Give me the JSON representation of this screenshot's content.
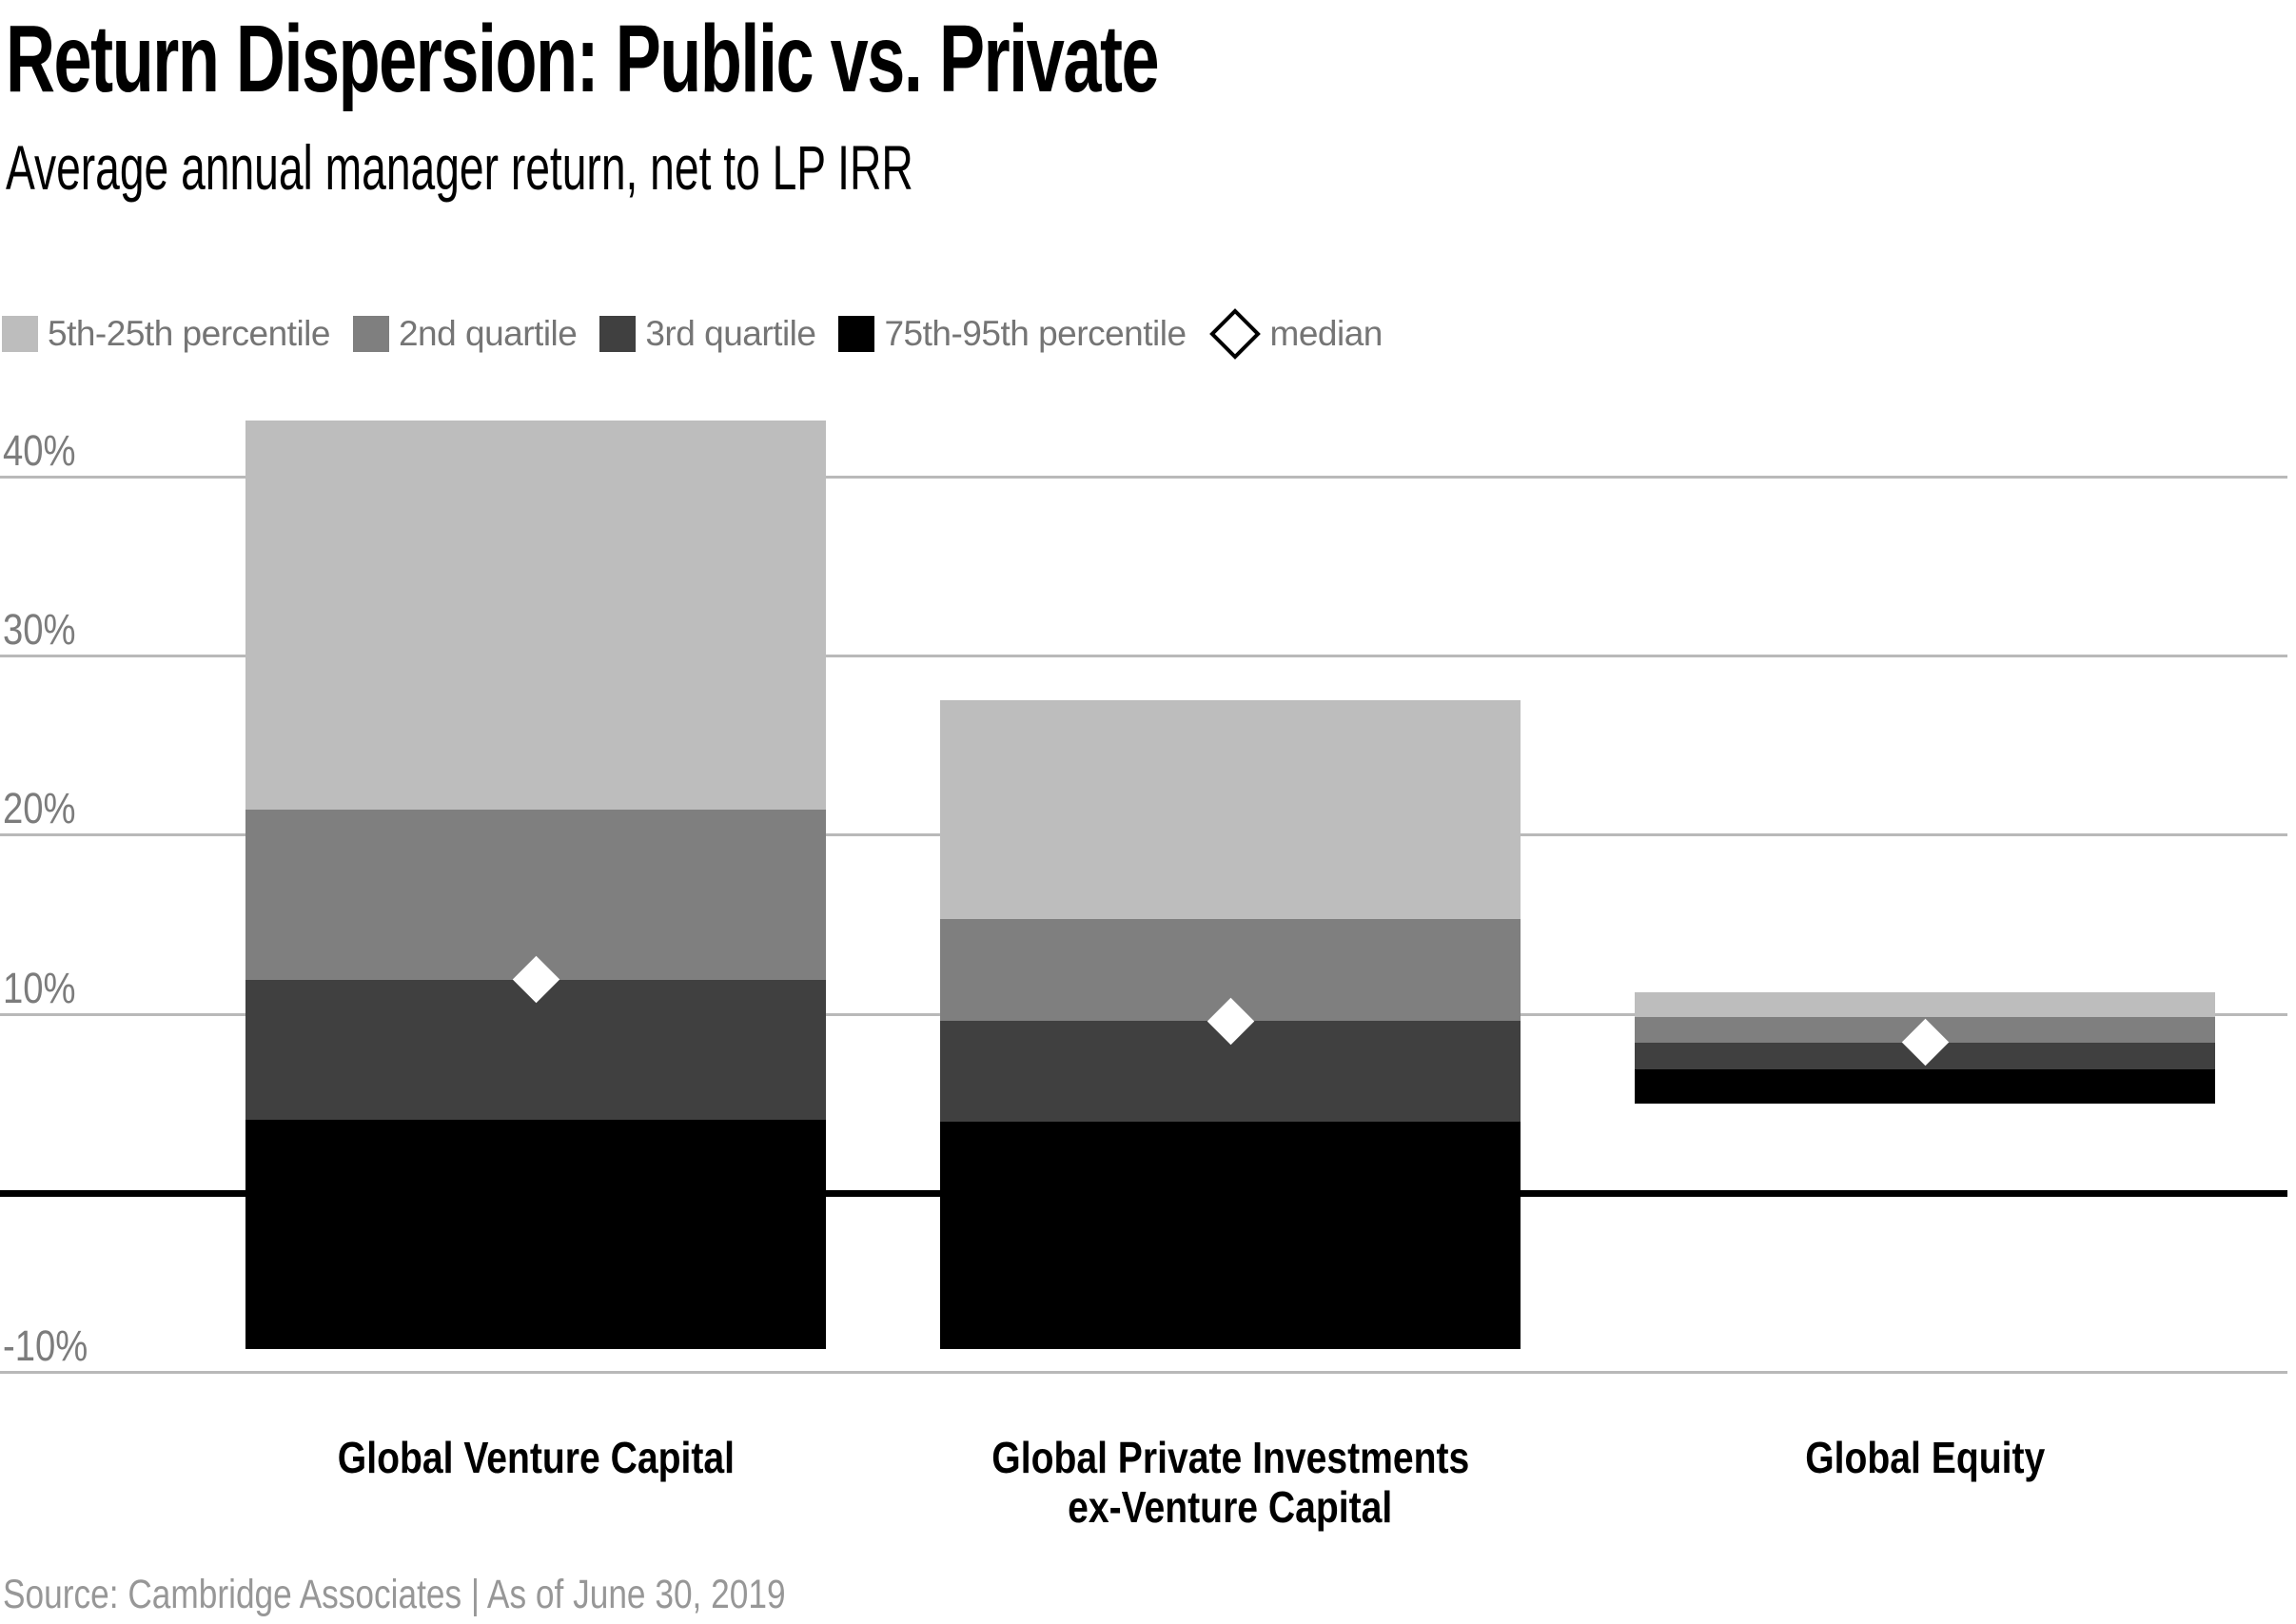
{
  "title": "Return Dispersion: Public vs. Private",
  "subtitle": "Average annual manager return, net to LP IRR",
  "source": "Source: Cambridge Associates | As of June 30, 2019",
  "legend": [
    {
      "label": "5th-25th percentile",
      "swatch": "square",
      "color": "#bdbdbd"
    },
    {
      "label": "2nd quartile",
      "swatch": "square",
      "color": "#7f7f7f"
    },
    {
      "label": "3rd quartile",
      "swatch": "square",
      "color": "#404040"
    },
    {
      "label": "75th-95th percentile",
      "swatch": "square",
      "color": "#000000"
    },
    {
      "label": "median",
      "swatch": "diamond",
      "color": "#ffffff"
    }
  ],
  "axis": {
    "ticks": [
      {
        "label": "40%",
        "value": 40
      },
      {
        "label": "30%",
        "value": 30
      },
      {
        "label": "20%",
        "value": 20
      },
      {
        "label": "10%",
        "value": 10
      },
      {
        "label": "-10%",
        "value": -10
      }
    ],
    "zero_value": 0,
    "gridline_color": "#b9b9b9",
    "zero_line_color": "#000000",
    "label_color": "#7c7c7c"
  },
  "chart_data": {
    "type": "bar",
    "subtype": "stacked-percentile-range-columns",
    "title": "Return Dispersion: Public vs. Private",
    "subtitle": "Average annual manager return, net to LP IRR",
    "xlabel": "",
    "ylabel": "Average annual manager return, net to LP IRR (%)",
    "ylim": [
      -12,
      45
    ],
    "yticks": [
      40,
      30,
      20,
      10,
      0,
      -10
    ],
    "grid": true,
    "legend_position": "top",
    "categories": [
      "Global Venture Capital",
      "Global Private Investments ex-Venture Capital",
      "Global Equity"
    ],
    "category_lines": [
      [
        "Global Venture Capital"
      ],
      [
        "Global Private Investments",
        "ex-Venture Capital"
      ],
      [
        "Global Equity"
      ]
    ],
    "points": [
      {
        "category": "Global Venture Capital",
        "p5": 43.1,
        "p25": 21.4,
        "median": 11.9,
        "p75": 4.1,
        "p95": -8.7
      },
      {
        "category": "Global Private Investments ex-Venture Capital",
        "p5": 27.5,
        "p25": 15.3,
        "median": 9.6,
        "p75": 4.0,
        "p95": -8.7
      },
      {
        "category": "Global Equity",
        "p5": 11.2,
        "p25": 9.8,
        "median": 8.4,
        "p75": 6.9,
        "p95": 5.0
      }
    ],
    "series": [
      {
        "name": "5th-25th percentile",
        "color": "#bdbdbd",
        "ranges": [
          [
            21.4,
            43.1
          ],
          [
            15.3,
            27.5
          ],
          [
            9.8,
            11.2
          ]
        ]
      },
      {
        "name": "2nd quartile",
        "color": "#7f7f7f",
        "ranges": [
          [
            11.9,
            21.4
          ],
          [
            9.6,
            15.3
          ],
          [
            8.4,
            9.8
          ]
        ]
      },
      {
        "name": "3rd quartile",
        "color": "#404040",
        "ranges": [
          [
            4.1,
            11.9
          ],
          [
            4.0,
            9.6
          ],
          [
            6.9,
            8.4
          ]
        ]
      },
      {
        "name": "75th-95th percentile",
        "color": "#000000",
        "ranges": [
          [
            -8.7,
            4.1
          ],
          [
            -8.7,
            4.0
          ],
          [
            5.0,
            6.9
          ]
        ]
      }
    ],
    "medians": [
      11.9,
      9.6,
      8.4
    ],
    "median_marker": "white diamond"
  }
}
